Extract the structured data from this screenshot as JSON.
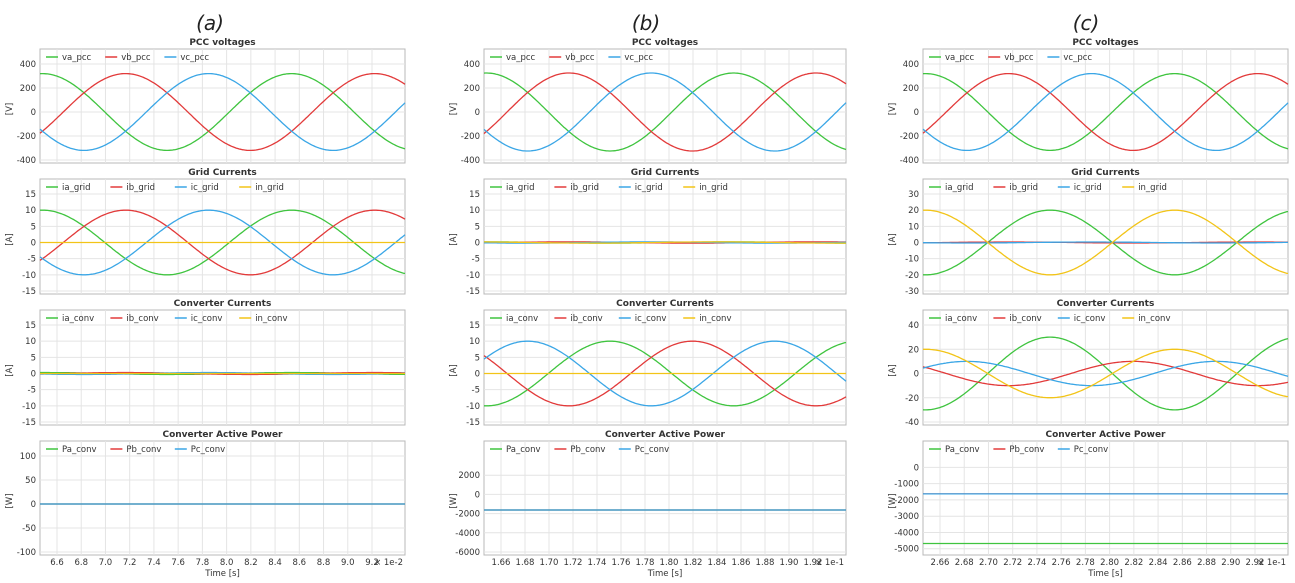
{
  "colors": {
    "green": "#3fc43f",
    "red": "#e23a3a",
    "blue": "#3aa6e6",
    "yellow": "#f2c418",
    "grid": "#e4e4e4",
    "axis": "#b8b8b8",
    "text": "#333333"
  },
  "columns": [
    {
      "label": "(a)",
      "xticks": [
        "6.6",
        "6.8",
        "7.0",
        "7.2",
        "7.4",
        "7.6",
        "7.8",
        "8.0",
        "8.2",
        "8.4",
        "8.6",
        "8.8",
        "9.0",
        "9.2"
      ],
      "xscale": "× 1e-2",
      "xlabel": "Time [s]"
    },
    {
      "label": "(b)",
      "xticks": [
        "1.66",
        "1.68",
        "1.70",
        "1.72",
        "1.74",
        "1.76",
        "1.78",
        "1.80",
        "1.82",
        "1.84",
        "1.86",
        "1.88",
        "1.90",
        "1.92"
      ],
      "xscale": "× 1e-1",
      "xlabel": "Time [s]"
    },
    {
      "label": "(c)",
      "xticks": [
        "2.66",
        "2.68",
        "2.70",
        "2.72",
        "2.74",
        "2.76",
        "2.78",
        "2.80",
        "2.82",
        "2.84",
        "2.86",
        "2.88",
        "2.90",
        "2.92"
      ],
      "xscale": "× 1e-1",
      "xlabel": "Time [s]"
    }
  ],
  "chart_data": [
    {
      "type": "line",
      "title": "PCC voltages",
      "ylabel": "[V]",
      "ylim": [
        -400,
        400
      ],
      "yticks": [
        400,
        200,
        0,
        -200,
        -400
      ],
      "xlim": [
        0.0648,
        0.0941
      ],
      "ampl": [
        320,
        320,
        320
      ],
      "phase": [
        0,
        -2.0944,
        2.0944
      ],
      "freq": 50,
      "series": [
        {
          "name": "va_pcc",
          "color": "green"
        },
        {
          "name": "vb_pcc",
          "color": "red"
        },
        {
          "name": "vc_pcc",
          "color": "blue"
        }
      ]
    },
    {
      "type": "line",
      "title": "Grid Currents",
      "ylabel": "[A]",
      "ylim": [
        -15,
        15
      ],
      "yticks": [
        15,
        10,
        5,
        0,
        -5,
        -10,
        -15
      ],
      "xlim": [
        0.0648,
        0.0941
      ],
      "ampl": [
        10,
        10,
        10,
        0
      ],
      "phase": [
        0,
        -2.0944,
        2.0944,
        0
      ],
      "freq": 50,
      "series": [
        {
          "name": "ia_grid",
          "color": "green"
        },
        {
          "name": "ib_grid",
          "color": "red"
        },
        {
          "name": "ic_grid",
          "color": "blue"
        },
        {
          "name": "in_grid",
          "color": "yellow"
        }
      ]
    },
    {
      "type": "line",
      "title": "Converter Currents",
      "ylabel": "[A]",
      "ylim": [
        -15,
        15
      ],
      "yticks": [
        15,
        10,
        5,
        0,
        -5,
        -10,
        -15
      ],
      "xlim": [
        0.0648,
        0.0941
      ],
      "ampl": [
        0.3,
        0.3,
        0.3,
        0
      ],
      "phase": [
        0,
        -2.0944,
        2.0944,
        0
      ],
      "freq": 50,
      "series": [
        {
          "name": "ia_conv",
          "color": "green"
        },
        {
          "name": "ib_conv",
          "color": "red"
        },
        {
          "name": "ic_conv",
          "color": "blue"
        },
        {
          "name": "in_conv",
          "color": "yellow"
        }
      ]
    },
    {
      "type": "line",
      "title": "Converter Active Power",
      "ylabel": "[W]",
      "ylim": [
        -100,
        100
      ],
      "yticks": [
        100,
        50,
        0,
        -50,
        -100
      ],
      "xlim": [
        0.0648,
        0.0941
      ],
      "const": [
        0,
        0,
        0
      ],
      "series": [
        {
          "name": "Pa_conv",
          "color": "green"
        },
        {
          "name": "Pb_conv",
          "color": "red"
        },
        {
          "name": "Pc_conv",
          "color": "blue"
        }
      ]
    },
    {
      "type": "line",
      "title": "PCC voltages",
      "ylabel": "[V]",
      "ylim": [
        -400,
        400
      ],
      "yticks": [
        400,
        200,
        0,
        -200,
        -400
      ],
      "xlim": [
        0.1648,
        0.1941
      ],
      "ampl": [
        325,
        325,
        325
      ],
      "phase": [
        0,
        -2.0944,
        2.0944
      ],
      "freq": 50,
      "series": [
        {
          "name": "va_pcc",
          "color": "green"
        },
        {
          "name": "vb_pcc",
          "color": "red"
        },
        {
          "name": "vc_pcc",
          "color": "blue"
        }
      ]
    },
    {
      "type": "line",
      "title": "Grid Currents",
      "ylabel": "[A]",
      "ylim": [
        -15,
        15
      ],
      "yticks": [
        15,
        10,
        5,
        0,
        -5,
        -10,
        -15
      ],
      "xlim": [
        0.1648,
        0.1941
      ],
      "ampl": [
        0.2,
        0.2,
        0.2,
        0.2
      ],
      "phase": [
        0,
        -2.0944,
        2.0944,
        0.5
      ],
      "freq": 50,
      "series": [
        {
          "name": "ia_grid",
          "color": "green"
        },
        {
          "name": "ib_grid",
          "color": "red"
        },
        {
          "name": "ic_grid",
          "color": "blue"
        },
        {
          "name": "in_grid",
          "color": "yellow"
        }
      ]
    },
    {
      "type": "line",
      "title": "Converter Currents",
      "ylabel": "[A]",
      "ylim": [
        -15,
        15
      ],
      "yticks": [
        15,
        10,
        5,
        0,
        -5,
        -10,
        -15
      ],
      "xlim": [
        0.1648,
        0.1941
      ],
      "ampl": [
        10,
        10,
        10,
        0
      ],
      "phase": [
        3.1416,
        1.0472,
        -1.0472,
        0
      ],
      "freq": 50,
      "series": [
        {
          "name": "ia_conv",
          "color": "green"
        },
        {
          "name": "ib_conv",
          "color": "red"
        },
        {
          "name": "ic_conv",
          "color": "blue"
        },
        {
          "name": "in_conv",
          "color": "yellow"
        }
      ]
    },
    {
      "type": "line",
      "title": "Converter Active Power",
      "ylabel": "[W]",
      "ylim": [
        -6000,
        4000
      ],
      "yticks": [
        2000,
        0,
        -2000,
        -4000,
        -6000
      ],
      "xlim": [
        0.1648,
        0.1941
      ],
      "const": [
        -1630,
        -1630,
        -1630
      ],
      "series": [
        {
          "name": "Pa_conv",
          "color": "green"
        },
        {
          "name": "Pb_conv",
          "color": "red"
        },
        {
          "name": "Pc_conv",
          "color": "blue"
        }
      ]
    },
    {
      "type": "line",
      "title": "PCC voltages",
      "ylabel": "[V]",
      "ylim": [
        -400,
        400
      ],
      "yticks": [
        400,
        200,
        0,
        -200,
        -400
      ],
      "xlim": [
        0.2648,
        0.2941
      ],
      "ampl": [
        320,
        320,
        320
      ],
      "phase": [
        0,
        -2.0944,
        2.0944
      ],
      "freq": 50,
      "series": [
        {
          "name": "va_pcc",
          "color": "green"
        },
        {
          "name": "vb_pcc",
          "color": "red"
        },
        {
          "name": "vc_pcc",
          "color": "blue"
        }
      ]
    },
    {
      "type": "line",
      "title": "Grid Currents",
      "ylabel": "[A]",
      "ylim": [
        -30,
        30
      ],
      "yticks": [
        30,
        20,
        10,
        0,
        -10,
        -20,
        -30
      ],
      "xlim": [
        0.2648,
        0.2941
      ],
      "ampl": [
        20,
        0.3,
        0.3,
        20
      ],
      "phase": [
        3.1416,
        -2.0944,
        2.0944,
        0
      ],
      "freq": 50,
      "series": [
        {
          "name": "ia_grid",
          "color": "green"
        },
        {
          "name": "ib_grid",
          "color": "red"
        },
        {
          "name": "ic_grid",
          "color": "blue"
        },
        {
          "name": "in_grid",
          "color": "yellow"
        }
      ]
    },
    {
      "type": "line",
      "title": "Converter Currents",
      "ylabel": "[A]",
      "ylim": [
        -40,
        40
      ],
      "yticks": [
        40,
        20,
        0,
        -20,
        -40
      ],
      "xlim": [
        0.2648,
        0.2941
      ],
      "ampl": [
        30,
        10,
        10,
        20
      ],
      "phase": [
        3.1416,
        1.0472,
        -1.0472,
        0
      ],
      "freq": 50,
      "series": [
        {
          "name": "ia_conv",
          "color": "green"
        },
        {
          "name": "ib_conv",
          "color": "red"
        },
        {
          "name": "ic_conv",
          "color": "blue"
        },
        {
          "name": "in_conv",
          "color": "yellow"
        }
      ]
    },
    {
      "type": "line",
      "title": "Converter Active Power",
      "ylabel": "[W]",
      "ylim": [
        -5200,
        700
      ],
      "yticks": [
        0,
        -1000,
        -2000,
        -3000,
        -4000,
        -5000
      ],
      "xlim": [
        0.2648,
        0.2941
      ],
      "const": [
        -4680,
        -1630,
        -1630
      ],
      "series": [
        {
          "name": "Pa_conv",
          "color": "green"
        },
        {
          "name": "Pb_conv",
          "color": "red"
        },
        {
          "name": "Pc_conv",
          "color": "blue"
        }
      ]
    }
  ]
}
